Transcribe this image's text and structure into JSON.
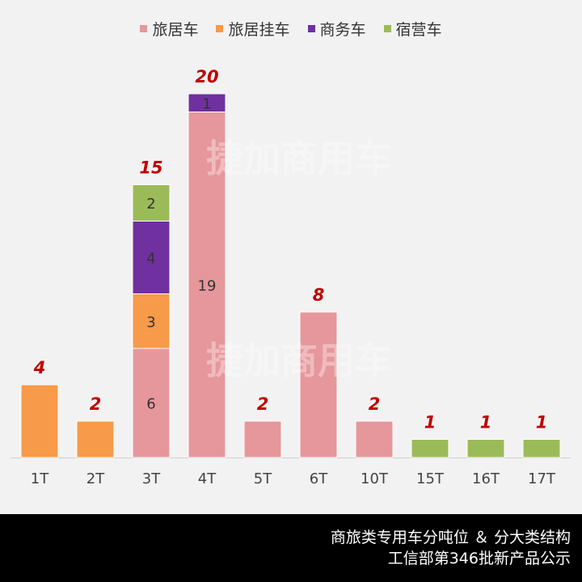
{
  "chart_data": {
    "type": "bar",
    "stacked": true,
    "categories": [
      "1T",
      "2T",
      "3T",
      "4T",
      "5T",
      "6T",
      "10T",
      "15T",
      "16T",
      "17T"
    ],
    "series": [
      {
        "name": "旅居车",
        "color": "#e6979c",
        "values": [
          0,
          0,
          6,
          19,
          2,
          8,
          2,
          0,
          0,
          0
        ]
      },
      {
        "name": "旅居挂车",
        "color": "#f79a4a",
        "values": [
          4,
          2,
          3,
          0,
          0,
          0,
          0,
          0,
          0,
          0
        ]
      },
      {
        "name": "商务车",
        "color": "#7030a0",
        "values": [
          0,
          0,
          4,
          1,
          0,
          0,
          0,
          0,
          0,
          0
        ]
      },
      {
        "name": "宿营车",
        "color": "#9bbb59",
        "values": [
          0,
          0,
          2,
          0,
          0,
          0,
          0,
          1,
          1,
          1
        ]
      }
    ],
    "totals": [
      4,
      2,
      15,
      20,
      2,
      8,
      2,
      1,
      1,
      1
    ],
    "total_label_color": "#c00000",
    "ylim": [
      0,
      20
    ],
    "grid": false,
    "legend": "top"
  },
  "watermark": "捷加商用车",
  "footer": {
    "line1": "商旅类专用车分吨位 ＆ 分大类结构",
    "line2": "工信部第346批新产品公示"
  }
}
